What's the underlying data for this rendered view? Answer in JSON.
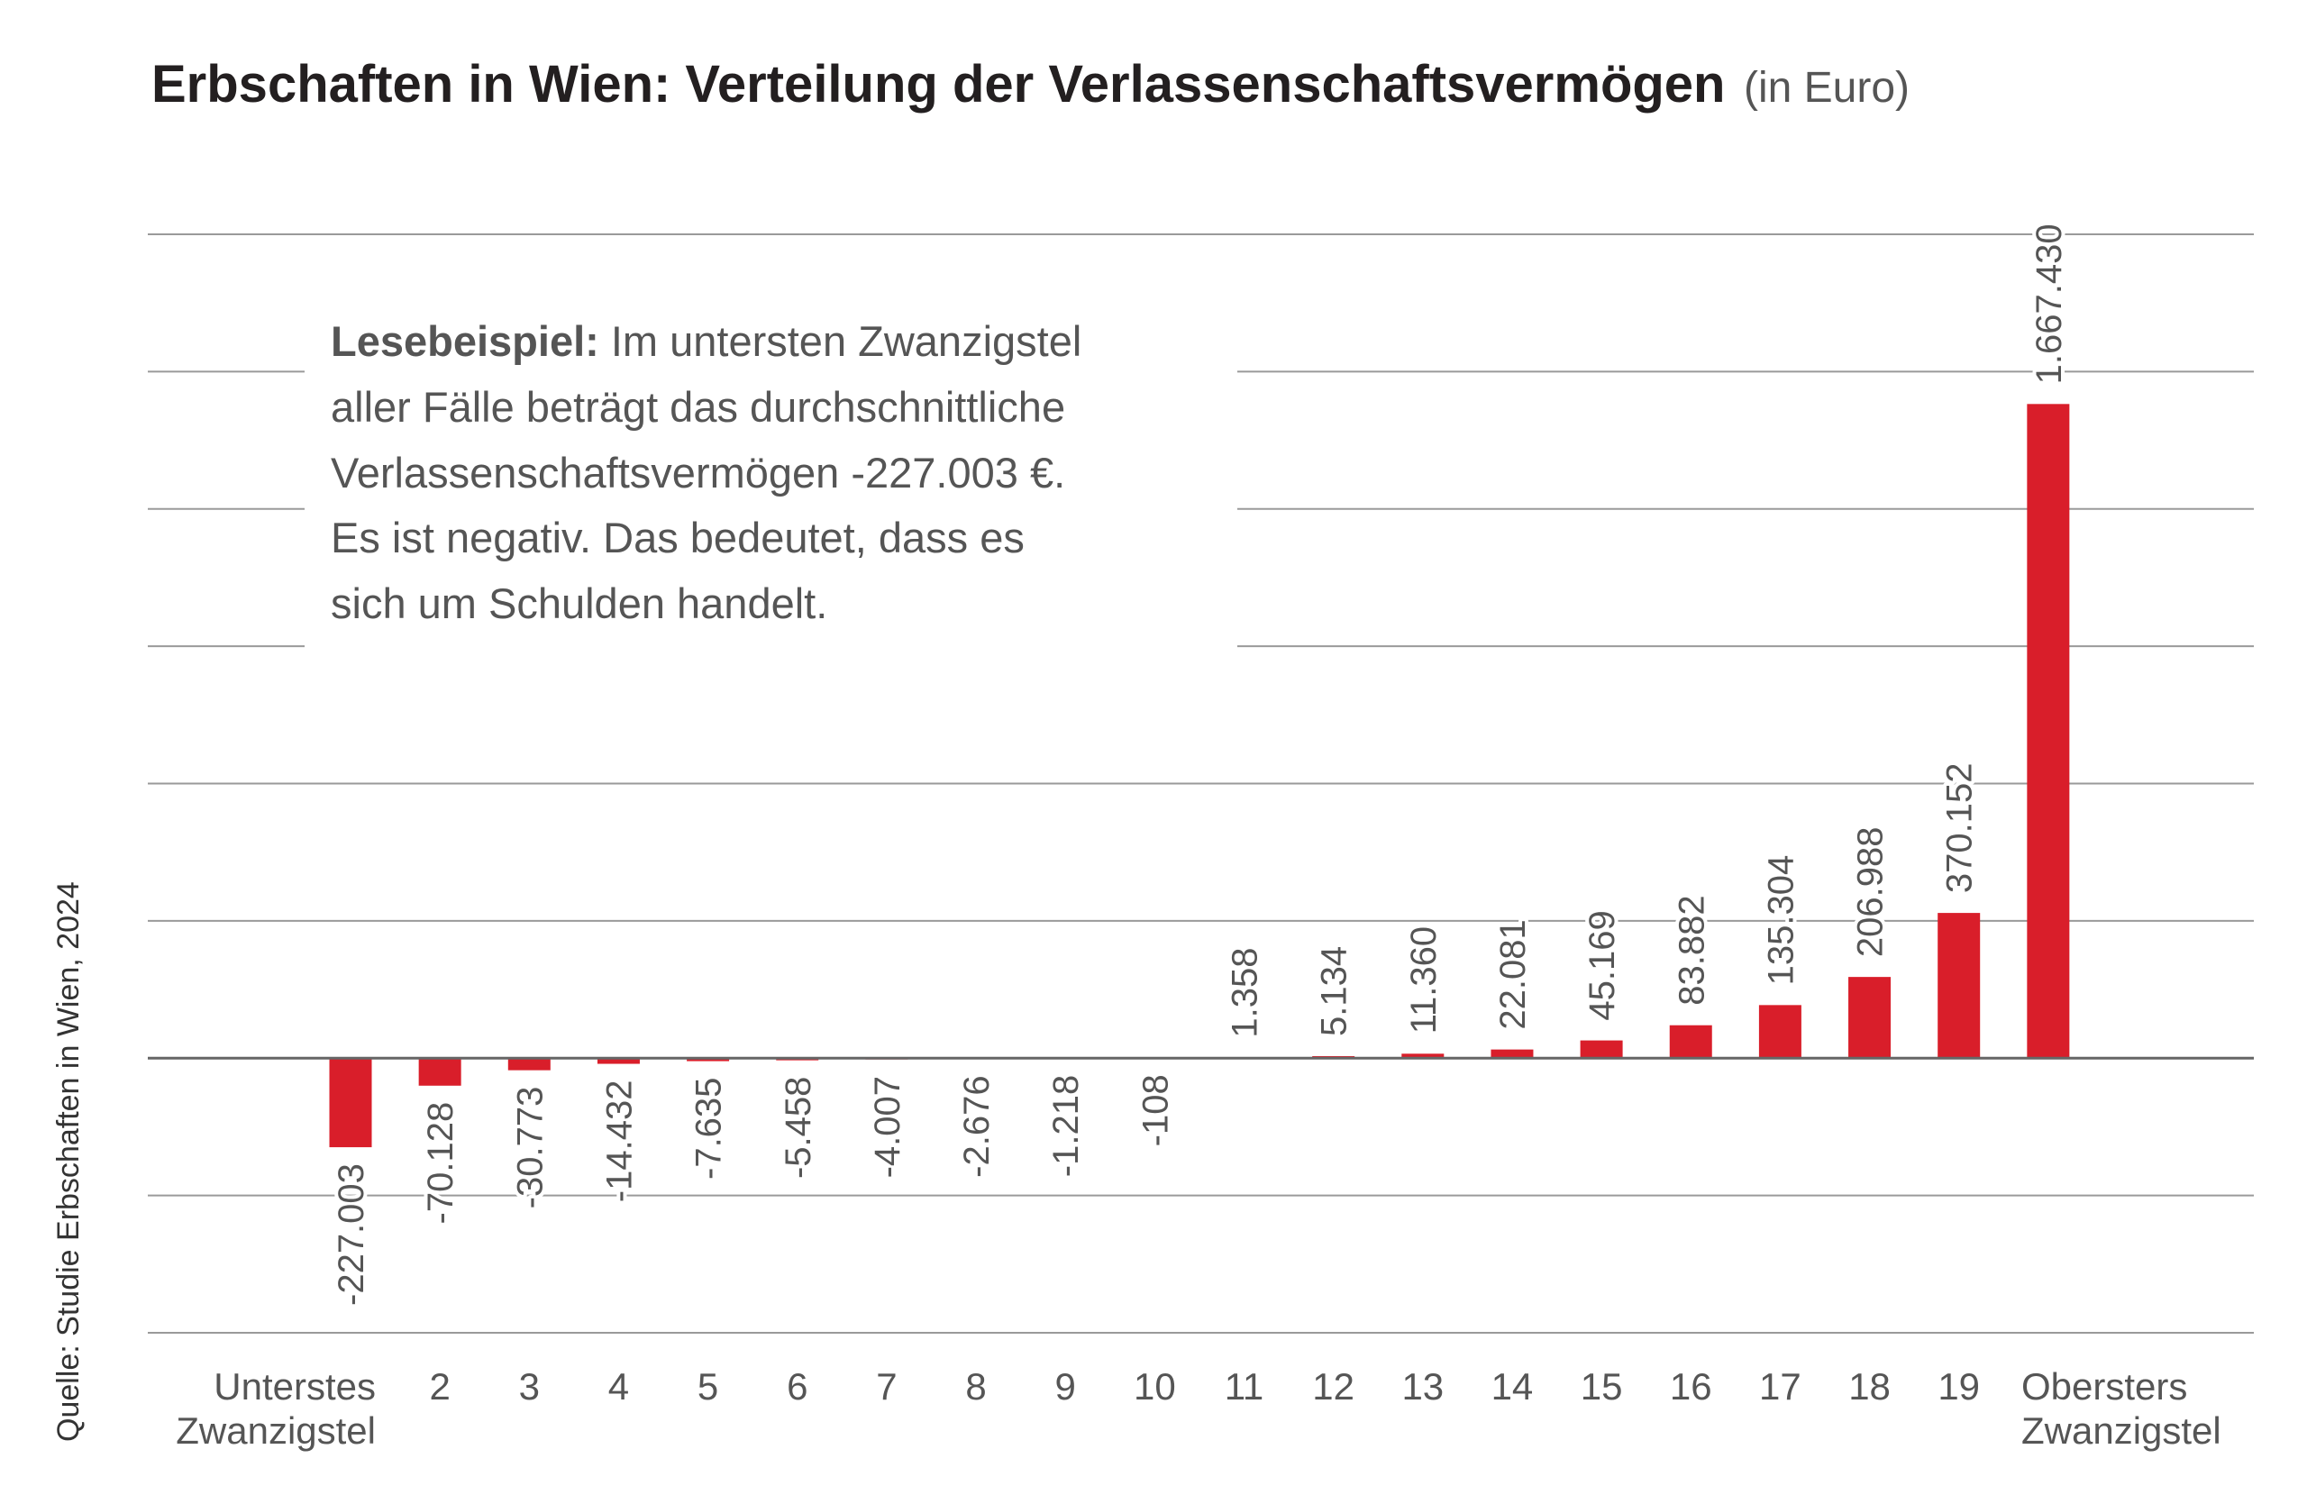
{
  "chart_data": {
    "type": "bar",
    "title": "Erbschaften in Wien: Verteilung der Verlassenschaftsvermögen",
    "title_unit": "(in Euro)",
    "xlabel": "",
    "ylabel": "",
    "grid": true,
    "ylim": [
      -700000,
      2100000
    ],
    "y_grid_step": 350000,
    "categories": [
      [
        "Unterstes",
        "Zwanzigstel"
      ],
      "2",
      "3",
      "4",
      "5",
      "6",
      "7",
      "8",
      "9",
      "10",
      "11",
      "12",
      "13",
      "14",
      "15",
      "16",
      "17",
      "18",
      "19",
      [
        "Obersters",
        "Zwanzigstel"
      ]
    ],
    "values": [
      -227003,
      -70128,
      -30773,
      -14432,
      -7635,
      -5458,
      -4007,
      -2676,
      -1218,
      -108,
      1358,
      5134,
      11360,
      22081,
      45169,
      83882,
      135304,
      206988,
      370152,
      1667430
    ],
    "value_labels": [
      "-227.003",
      "-70.128",
      "-30.773",
      "-14.432",
      "-7.635",
      "-5.458",
      "-4.007",
      "-2.676",
      "-1.218",
      "-108",
      "1.358",
      "5.134",
      "11.360",
      "22.081",
      "45.169",
      "83.882",
      "135.304",
      "206.988",
      "370.152",
      "1.667.430"
    ],
    "bar_color": "#d91e2a",
    "annotation": {
      "bold": "Lesebeispiel:",
      "lines": [
        " Im untersten Zwanzigstel",
        "aller Fälle beträgt das durchschnittliche",
        "Verlassenschaftsvermögen -227.003 €.",
        "Es ist negativ. Das bedeutet, dass es",
        "sich um Schulden handelt."
      ]
    },
    "source": "Quelle: Studie Erbschaften in Wien, 2024"
  }
}
